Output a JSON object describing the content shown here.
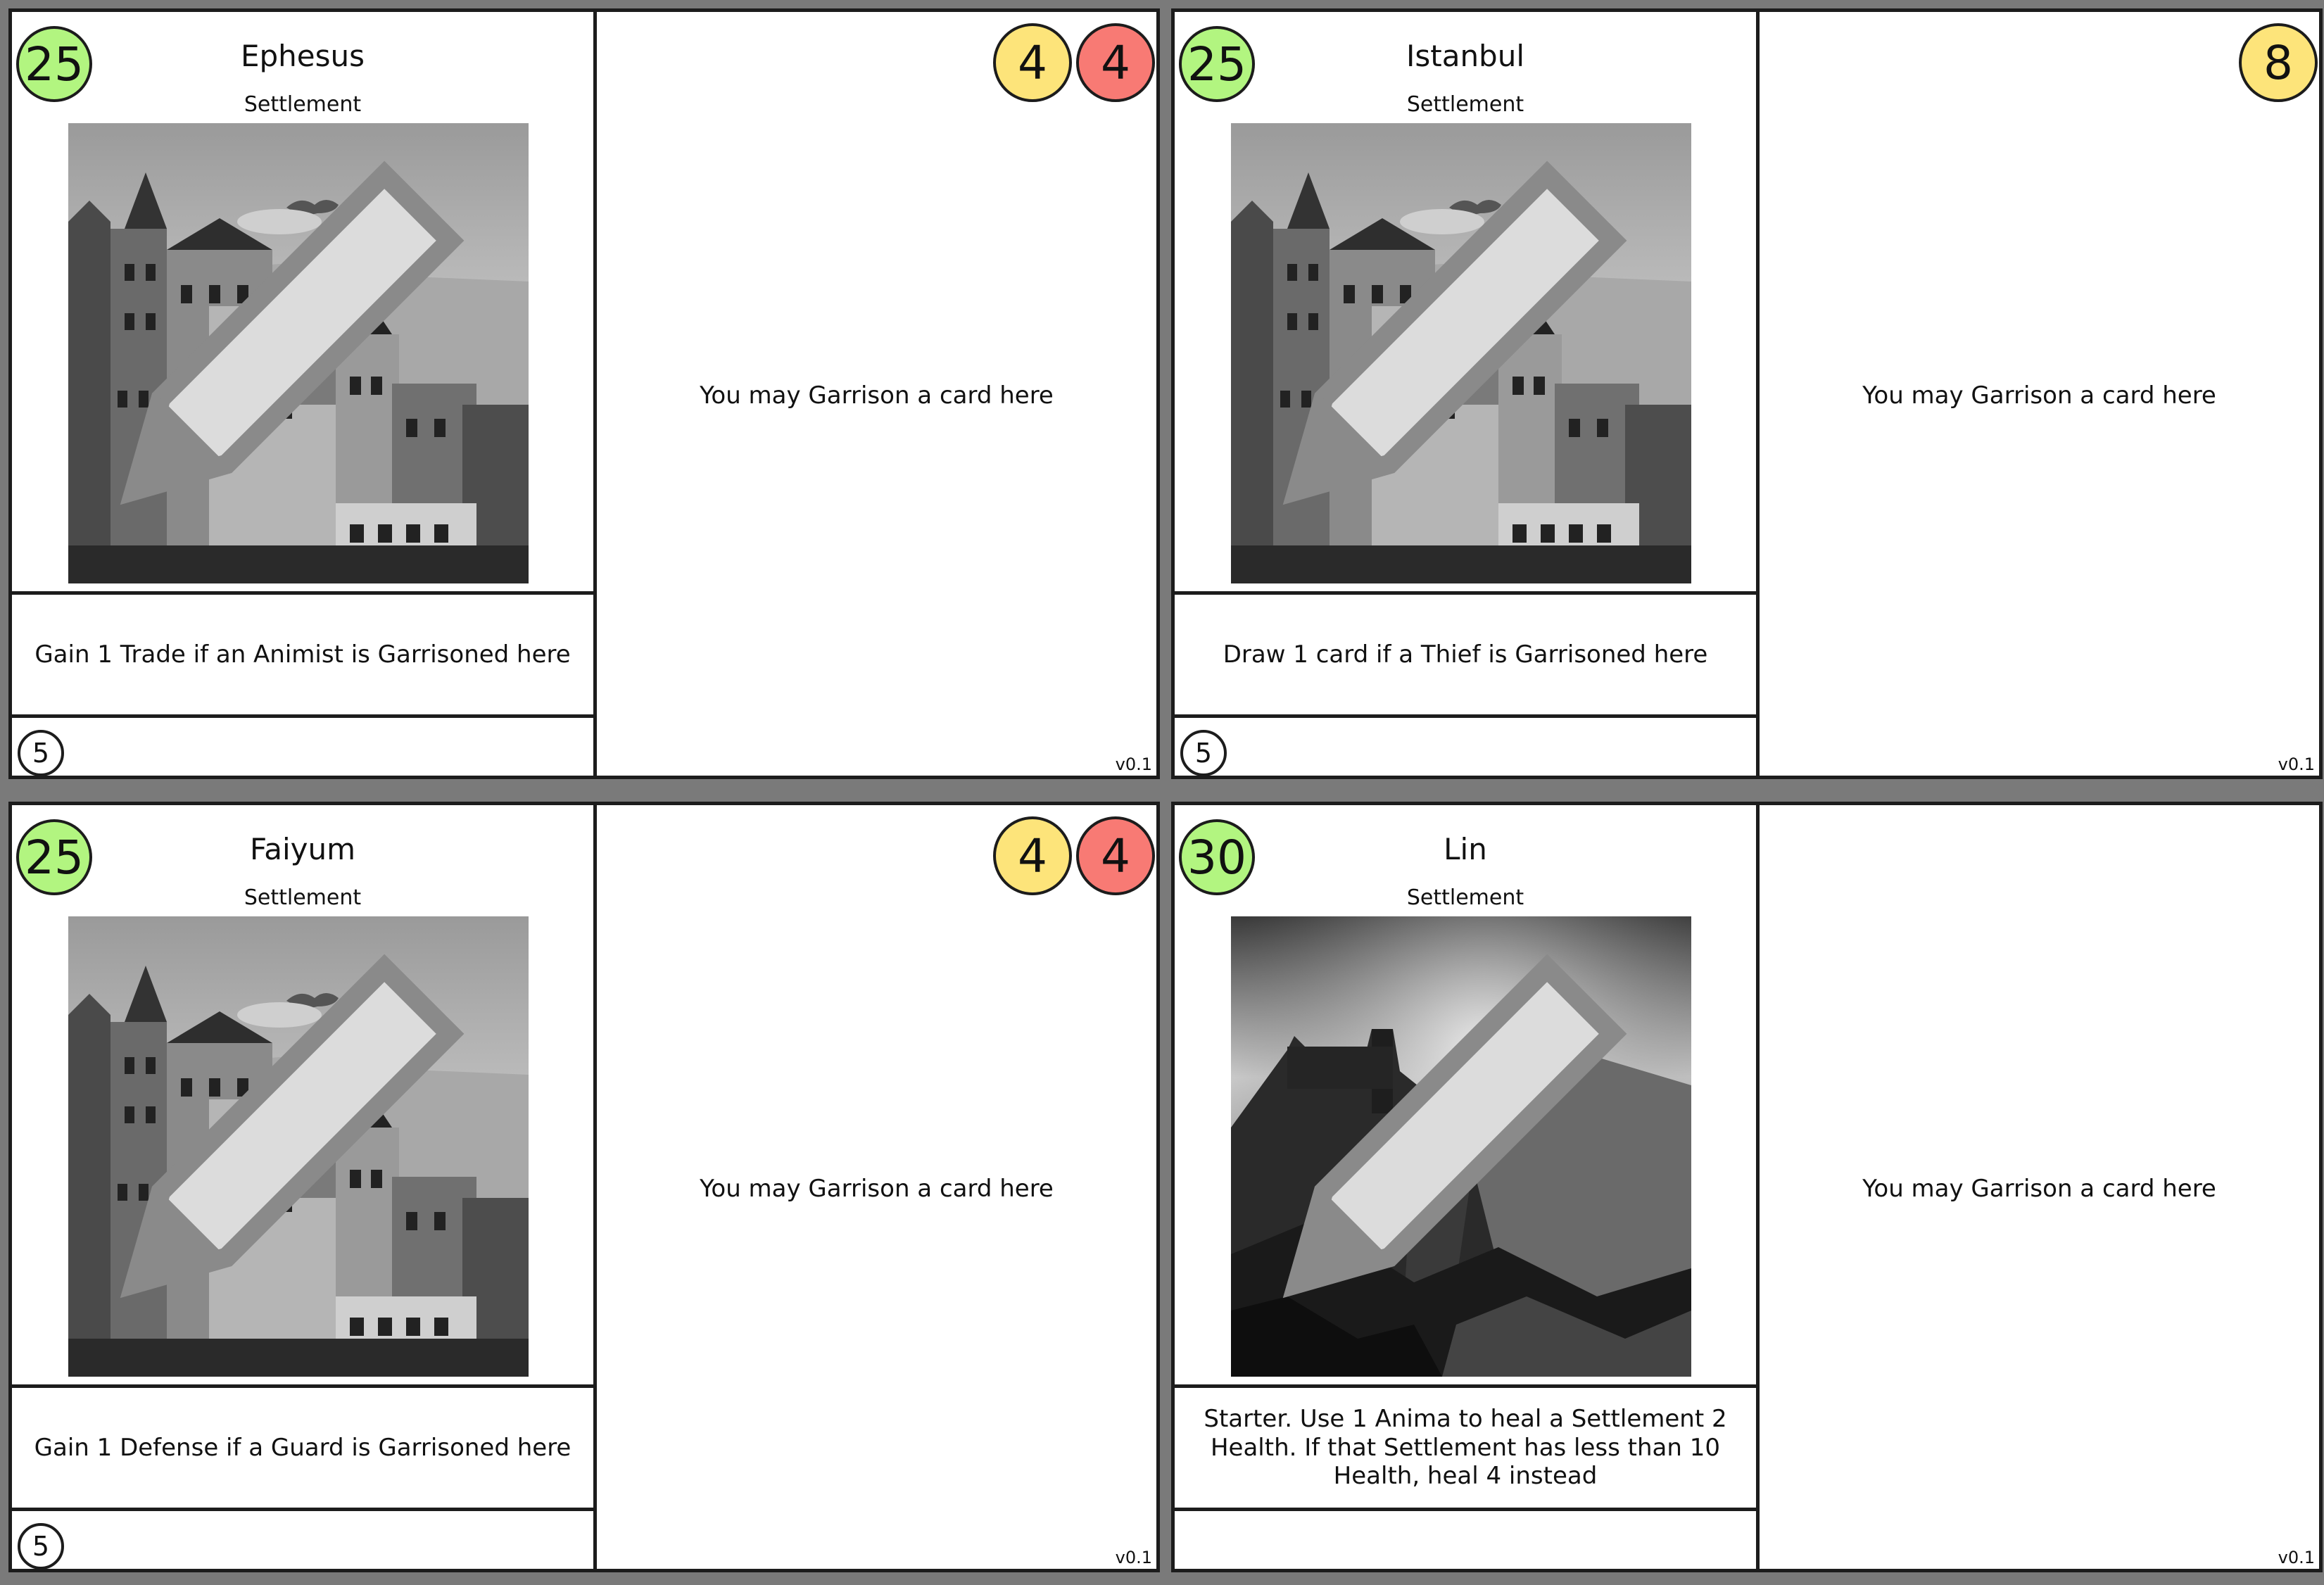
{
  "cards": [
    {
      "cost": "25",
      "title": "Ephesus",
      "type": "Settlement",
      "art": "town",
      "effect": "Gain 1 Trade if an Animist is Garrisoned here",
      "level": "5",
      "garrison_text": "You may Garrison a card here",
      "trade": "4",
      "defense": "4",
      "version": "v0.1"
    },
    {
      "cost": "25",
      "title": "Istanbul",
      "type": "Settlement",
      "art": "town",
      "effect": "Draw 1 card if a Thief is Garrisoned here",
      "level": "5",
      "garrison_text": "You may Garrison a card here",
      "trade": "8",
      "defense": "",
      "version": "v0.1"
    },
    {
      "cost": "25",
      "title": "Faiyum",
      "type": "Settlement",
      "art": "town",
      "effect": "Gain 1 Defense if a Guard is Garrisoned here",
      "level": "5",
      "garrison_text": "You may Garrison a card here",
      "trade": "4",
      "defense": "4",
      "version": "v0.1"
    },
    {
      "cost": "30",
      "title": "Lin",
      "type": "Settlement",
      "art": "castle",
      "effect": "Starter. Use 1 Anima to heal a Settlement 2 Health. If that Settlement has less than 10 Health, heal 4 instead",
      "level": "",
      "garrison_text": "You may Garrison a card here",
      "trade": "",
      "defense": "",
      "version": "v0.1"
    }
  ],
  "colors": {
    "cost_badge": "#b2f580",
    "trade_badge": "#fde47a",
    "defense_badge": "#f87a74",
    "background": "#7a7a7a"
  },
  "icons": {
    "edit": "pencil-icon"
  }
}
